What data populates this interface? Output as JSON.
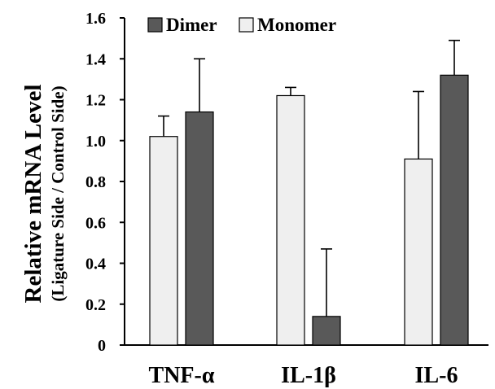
{
  "chart_data": {
    "type": "bar",
    "title": "",
    "xlabel": "",
    "ylabel": "Relative mRNA Level",
    "ylabel_sub": "(Ligature Side / Control Side)",
    "categories": [
      "TNF-α",
      "IL-1β",
      "IL-6"
    ],
    "series": [
      {
        "name": "Monomer",
        "color": "#efefef",
        "values": [
          1.02,
          1.22,
          0.91
        ],
        "errors": [
          0.1,
          0.04,
          0.33
        ]
      },
      {
        "name": "Dimer",
        "color": "#595959",
        "values": [
          1.14,
          0.14,
          1.32
        ],
        "errors": [
          0.26,
          0.33,
          0.17
        ]
      }
    ],
    "legend": {
      "placement": "top-left",
      "order": [
        "Dimer",
        "Monomer"
      ]
    },
    "ylim": [
      0,
      1.6
    ],
    "yticks": [
      "0",
      "0.2",
      "0.4",
      "0.6",
      "0.8",
      "1.0",
      "1.2",
      "1.4",
      "1.6"
    ],
    "grid": false
  }
}
